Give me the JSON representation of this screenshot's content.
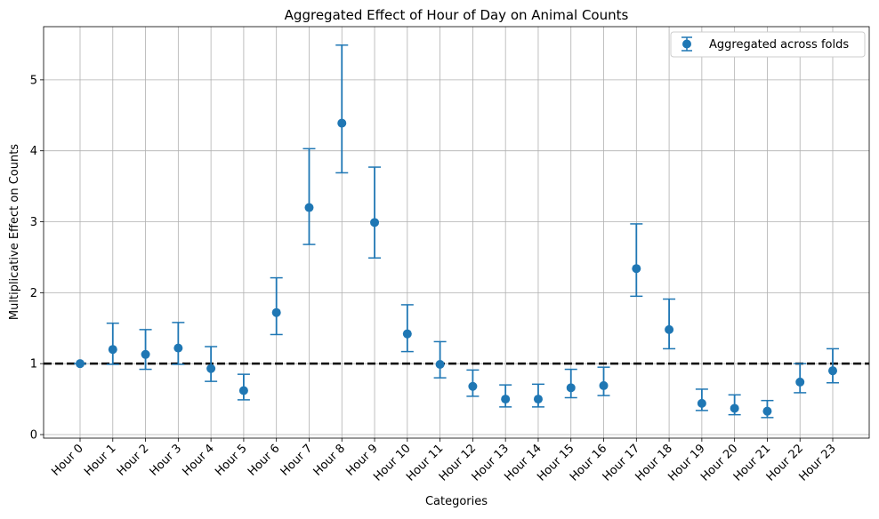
{
  "chart_data": {
    "type": "scatter",
    "title": "Aggregated Effect of Hour of Day on Animal Counts",
    "xlabel": "Categories",
    "ylabel": "Multiplicative Effect on Counts",
    "categories": [
      "Hour 0",
      "Hour 1",
      "Hour 2",
      "Hour 3",
      "Hour 4",
      "Hour 5",
      "Hour 6",
      "Hour 7",
      "Hour 8",
      "Hour 9",
      "Hour 10",
      "Hour 11",
      "Hour 12",
      "Hour 13",
      "Hour 14",
      "Hour 15",
      "Hour 16",
      "Hour 17",
      "Hour 18",
      "Hour 19",
      "Hour 20",
      "Hour 21",
      "Hour 22",
      "Hour 23"
    ],
    "series": [
      {
        "name": "Aggregated across folds",
        "values": [
          1.0,
          1.2,
          1.13,
          1.22,
          0.93,
          0.62,
          1.72,
          3.2,
          4.39,
          2.99,
          1.42,
          0.99,
          0.68,
          0.5,
          0.5,
          0.66,
          0.69,
          2.34,
          1.48,
          0.44,
          0.37,
          0.33,
          0.74,
          0.9
        ],
        "lower": [
          1.0,
          0.99,
          0.92,
          0.99,
          0.75,
          0.49,
          1.41,
          2.68,
          3.69,
          2.49,
          1.17,
          0.8,
          0.54,
          0.39,
          0.39,
          0.52,
          0.55,
          1.95,
          1.21,
          0.34,
          0.28,
          0.24,
          0.59,
          0.73
        ],
        "upper": [
          1.0,
          1.57,
          1.48,
          1.58,
          1.24,
          0.85,
          2.21,
          4.03,
          5.49,
          3.77,
          1.83,
          1.31,
          0.91,
          0.7,
          0.71,
          0.92,
          0.95,
          2.97,
          1.91,
          0.64,
          0.56,
          0.48,
          1.0,
          1.21
        ],
        "color": "#1f77b4"
      }
    ],
    "reference_line": {
      "y": 1,
      "style": "dashed",
      "color": "#000000"
    },
    "ylim": [
      -0.05,
      5.75
    ],
    "yticks": [
      0,
      1,
      2,
      3,
      4,
      5
    ],
    "grid": true,
    "legend": {
      "position": "upper right",
      "entries": [
        "Aggregated across folds"
      ]
    }
  }
}
